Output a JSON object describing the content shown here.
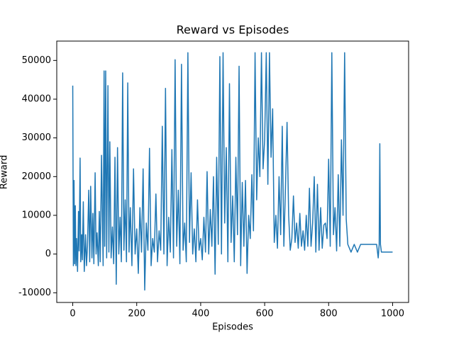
{
  "chart_data": {
    "type": "line",
    "title": "Reward vs Episodes",
    "x_label": "Episodes",
    "y_label": "Reward",
    "color": "#1f77b4",
    "xlim": [
      -50,
      1050
    ],
    "ylim": [
      -12500,
      55000
    ],
    "xticks": [
      0,
      200,
      400,
      600,
      800,
      1000
    ],
    "yticks": [
      -10000,
      0,
      10000,
      20000,
      30000,
      40000,
      50000
    ],
    "x": [
      0,
      2,
      4,
      6,
      8,
      10,
      12,
      15,
      18,
      20,
      23,
      25,
      28,
      30,
      33,
      36,
      40,
      43,
      46,
      50,
      53,
      56,
      60,
      63,
      66,
      70,
      73,
      76,
      80,
      83,
      86,
      90,
      95,
      98,
      100,
      103,
      106,
      110,
      113,
      116,
      120,
      124,
      128,
      132,
      136,
      140,
      144,
      148,
      152,
      156,
      160,
      164,
      168,
      172,
      176,
      180,
      185,
      190,
      195,
      200,
      205,
      210,
      215,
      220,
      225,
      230,
      235,
      240,
      245,
      250,
      255,
      260,
      265,
      270,
      275,
      280,
      285,
      290,
      295,
      300,
      305,
      310,
      315,
      320,
      325,
      330,
      335,
      340,
      345,
      350,
      355,
      360,
      365,
      370,
      375,
      380,
      385,
      390,
      395,
      400,
      405,
      410,
      415,
      420,
      425,
      430,
      435,
      440,
      445,
      450,
      455,
      460,
      465,
      470,
      475,
      480,
      485,
      490,
      495,
      500,
      505,
      510,
      515,
      520,
      525,
      530,
      535,
      540,
      545,
      550,
      555,
      560,
      565,
      570,
      575,
      580,
      585,
      590,
      595,
      600,
      605,
      610,
      615,
      620,
      625,
      630,
      635,
      640,
      645,
      650,
      655,
      660,
      665,
      670,
      675,
      680,
      685,
      690,
      695,
      700,
      705,
      710,
      715,
      720,
      725,
      730,
      735,
      740,
      745,
      750,
      755,
      760,
      765,
      770,
      775,
      780,
      785,
      790,
      795,
      800,
      805,
      810,
      815,
      820,
      825,
      830,
      835,
      840,
      845,
      850,
      855,
      860,
      870,
      880,
      890,
      900,
      910,
      920,
      930,
      940,
      950,
      955,
      958,
      960,
      962,
      965,
      970,
      980,
      990,
      1000
    ],
    "values": [
      43500,
      -3000,
      19000,
      -2500,
      12500,
      -3000,
      4000,
      -4500,
      11000,
      800,
      24800,
      -2000,
      5000,
      -1500,
      13500,
      -4500,
      5000,
      -3000,
      2000,
      16500,
      -2000,
      17500,
      -1000,
      10500,
      -2500,
      21000,
      0,
      5500,
      -3000,
      11000,
      -2000,
      25500,
      -3000,
      47300,
      2000,
      47300,
      -1000,
      43500,
      500,
      29000,
      -1000,
      7000,
      -2500,
      25000,
      -7800,
      27500,
      0,
      9500,
      -2000,
      46800,
      1000,
      14000,
      -2000,
      44200,
      500,
      12000,
      -3000,
      22000,
      0,
      6500,
      -5000,
      12000,
      500,
      22000,
      -9300,
      8000,
      1000,
      27300,
      -3000,
      4000,
      500,
      15500,
      -2000,
      6000,
      1000,
      33000,
      0,
      42800,
      -3000,
      9500,
      500,
      27000,
      -1000,
      50200,
      2000,
      16500,
      -2500,
      49000,
      1000,
      8000,
      -2000,
      52000,
      3000,
      21000,
      0,
      6500,
      -2000,
      14000,
      1000,
      4000,
      -1500,
      9500,
      500,
      21300,
      0,
      11500,
      2000,
      20000,
      -5200,
      25000,
      2500,
      51000,
      0,
      52000,
      8000,
      27500,
      -2000,
      44000,
      3000,
      15000,
      -2000,
      25000,
      5000,
      48500,
      -3000,
      18500,
      2000,
      19000,
      -5000,
      10000,
      4000,
      20500,
      6000,
      52000,
      14000,
      30000,
      20000,
      52000,
      22000,
      29500,
      52000,
      18000,
      52000,
      25000,
      37500,
      3000,
      10000,
      1500,
      20000,
      5000,
      33000,
      2000,
      17000,
      34000,
      10000,
      1000,
      4000,
      15000,
      3000,
      8000,
      1500,
      10500,
      2000,
      6000,
      1000,
      10000,
      2000,
      17000,
      2000,
      8000,
      20000,
      500,
      18000,
      1000,
      12000,
      1500,
      7500,
      8000,
      4000,
      24500,
      2000,
      52000,
      5000,
      12000,
      800,
      20500,
      2000,
      29500,
      10000,
      52000,
      9000,
      2500,
      500,
      2500,
      500,
      2500,
      2500,
      2500,
      2500,
      2500,
      2500,
      -1000,
      2500,
      28500,
      2500,
      500,
      500,
      500,
      500,
      500
    ]
  }
}
